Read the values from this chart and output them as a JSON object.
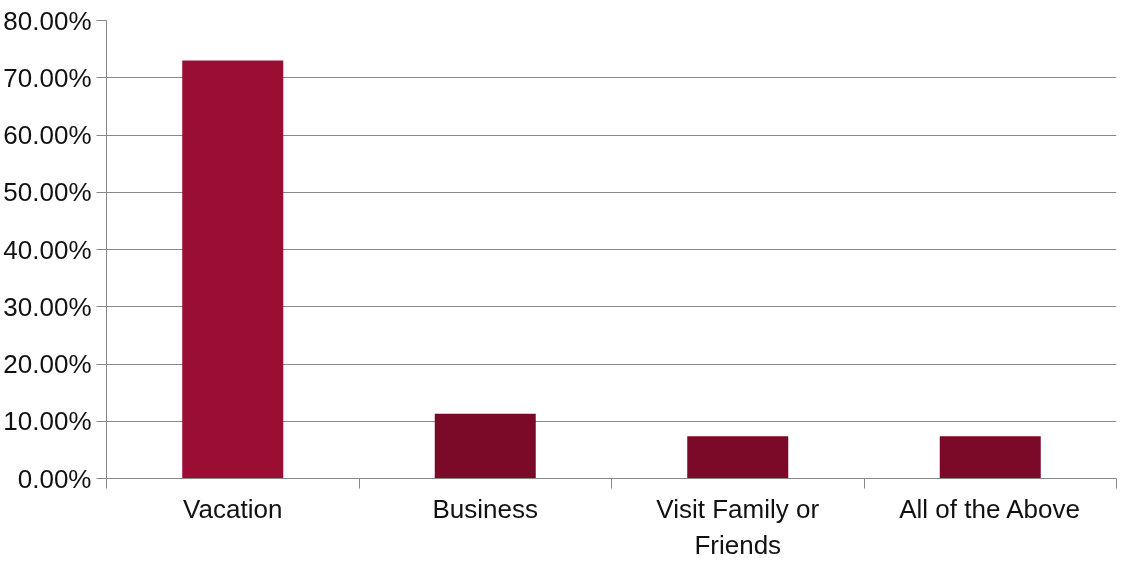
{
  "chart_data": {
    "type": "bar",
    "categories": [
      "Vacation",
      "Business",
      "Visit Family or Friends",
      "All of the Above"
    ],
    "values": [
      73,
      11.3,
      7.4,
      7.4
    ],
    "colors": [
      "#9b0e34",
      "#7b0a29",
      "#7b0a29",
      "#7b0a29"
    ],
    "ylim": [
      0,
      80
    ],
    "yticks": [
      {
        "value": 0,
        "label": "0.00%"
      },
      {
        "value": 10,
        "label": "10.00%"
      },
      {
        "value": 20,
        "label": "20.00%"
      },
      {
        "value": 30,
        "label": "30.00%"
      },
      {
        "value": 40,
        "label": "40.00%"
      },
      {
        "value": 50,
        "label": "50.00%"
      },
      {
        "value": 60,
        "label": "60.00%"
      },
      {
        "value": 70,
        "label": "70.00%"
      },
      {
        "value": 80,
        "label": "80.00%"
      }
    ],
    "grid": "y"
  }
}
